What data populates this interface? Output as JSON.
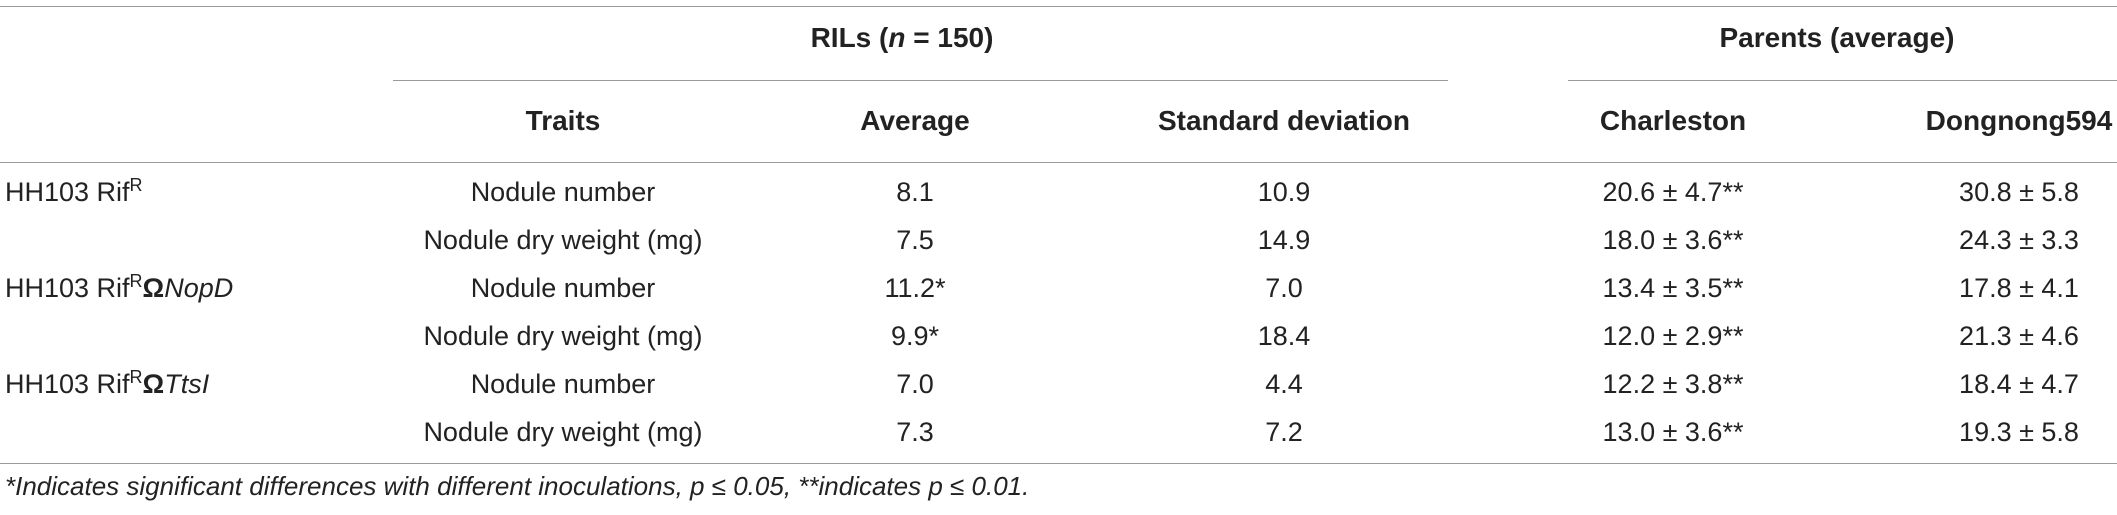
{
  "header": {
    "rils_label": "RILs (",
    "rils_n": "n",
    "rils_count": " = 150)",
    "parents_label": "Parents (average)",
    "columns": [
      "Traits",
      "Average",
      "Standard deviation",
      "Charleston",
      "Dongnong594"
    ]
  },
  "strains": [
    {
      "base": "HH103 Rif",
      "sup": "R",
      "omega": "",
      "mutant": ""
    },
    {
      "base": "HH103 Rif",
      "sup": "R",
      "omega": "Ω",
      "mutant": "NopD"
    },
    {
      "base": "HH103 Rif",
      "sup": "R",
      "omega": "Ω",
      "mutant": "TtsI"
    }
  ],
  "rows": [
    {
      "trait": "Nodule number",
      "average": "8.1",
      "sd": "10.9",
      "charleston": "20.6 ± 4.7**",
      "dongnong": "30.8 ± 5.8"
    },
    {
      "trait": "Nodule dry weight (mg)",
      "average": "7.5",
      "sd": "14.9",
      "charleston": "18.0 ± 3.6**",
      "dongnong": "24.3 ± 3.3"
    },
    {
      "trait": "Nodule number",
      "average": "11.2*",
      "sd": "7.0",
      "charleston": "13.4 ± 3.5**",
      "dongnong": "17.8 ± 4.1"
    },
    {
      "trait": "Nodule dry weight (mg)",
      "average": "9.9*",
      "sd": "18.4",
      "charleston": "12.0 ± 2.9**",
      "dongnong": "21.3 ± 4.6"
    },
    {
      "trait": "Nodule number",
      "average": "7.0",
      "sd": "4.4",
      "charleston": "12.2 ± 3.8**",
      "dongnong": "18.4 ± 4.7"
    },
    {
      "trait": "Nodule dry weight (mg)",
      "average": "7.3",
      "sd": "7.2",
      "charleston": "13.0 ± 3.6**",
      "dongnong": "19.3 ± 5.8"
    }
  ],
  "footnote": "*Indicates significant differences with different inoculations, p ≤ 0.05, **indicates p ≤ 0.01."
}
